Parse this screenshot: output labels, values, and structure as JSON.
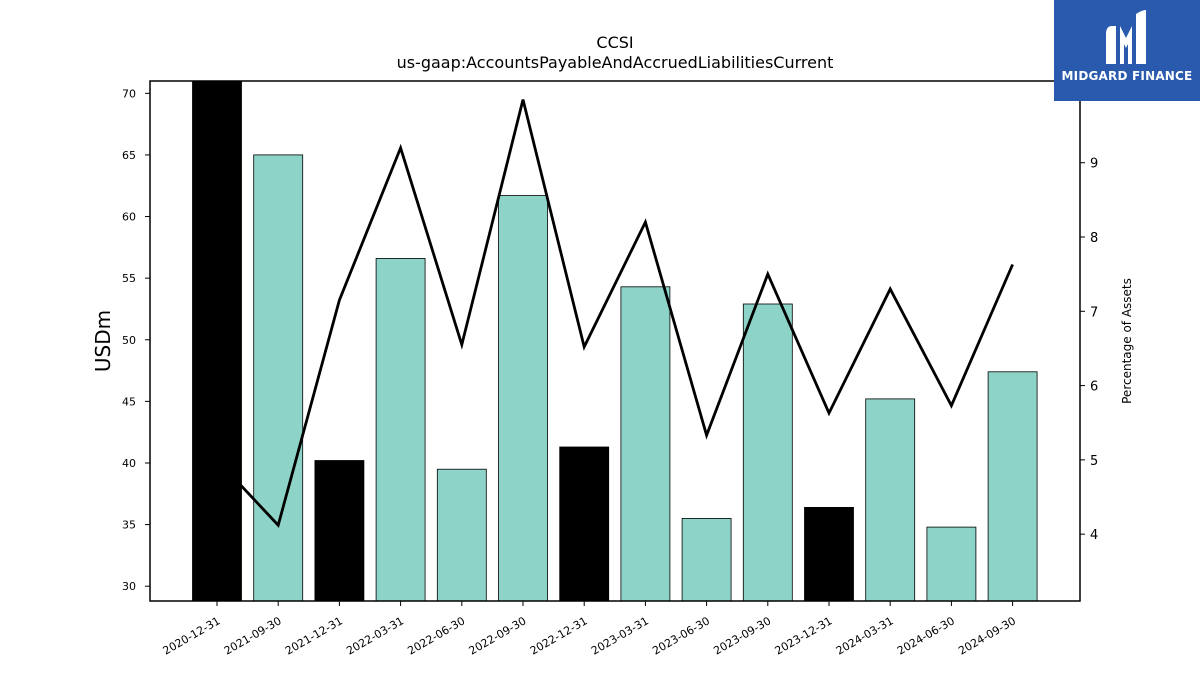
{
  "chart_data": {
    "type": "bar",
    "title": "CCSI",
    "subtitle": "us-gaap:AccountsPayableAndAccruedLiabilitiesCurrent",
    "ylabel": "USDm",
    "y2label": "Percentage of Assets",
    "ylim": [
      28.8,
      71.0
    ],
    "y2lim": [
      3.1,
      10.1
    ],
    "yticks": [
      30,
      35,
      40,
      45,
      50,
      55,
      60,
      65,
      70
    ],
    "y2ticks": [
      4,
      5,
      6,
      7,
      8,
      9
    ],
    "categories": [
      "2020-12-31",
      "2021-09-30",
      "2021-12-31",
      "2022-03-31",
      "2022-06-30",
      "2022-09-30",
      "2022-12-31",
      "2023-03-31",
      "2023-06-30",
      "2023-09-30",
      "2023-12-31",
      "2024-03-31",
      "2024-06-30",
      "2024-09-30"
    ],
    "series": [
      {
        "values": [
          71.0,
          65.0,
          40.2,
          56.6,
          39.5,
          61.7,
          41.3,
          54.3,
          35.5,
          52.9,
          36.4,
          45.2,
          34.8,
          47.4
        ],
        "colors": [
          "#000000",
          "#8dd3c7",
          "#000000",
          "#8dd3c7",
          "#8dd3c7",
          "#8dd3c7",
          "#000000",
          "#8dd3c7",
          "#8dd3c7",
          "#8dd3c7",
          "#000000",
          "#8dd3c7",
          "#8dd3c7",
          "#8dd3c7"
        ]
      },
      {
        "axis": "right",
        "type": "line",
        "values": [
          5.0,
          4.12,
          7.15,
          9.2,
          6.55,
          9.85,
          6.52,
          8.2,
          5.33,
          7.5,
          5.63,
          7.3,
          5.73,
          7.63
        ]
      }
    ],
    "grid": false,
    "legend": "none"
  },
  "logo": {
    "text": "MIDGARD FINANCE"
  }
}
